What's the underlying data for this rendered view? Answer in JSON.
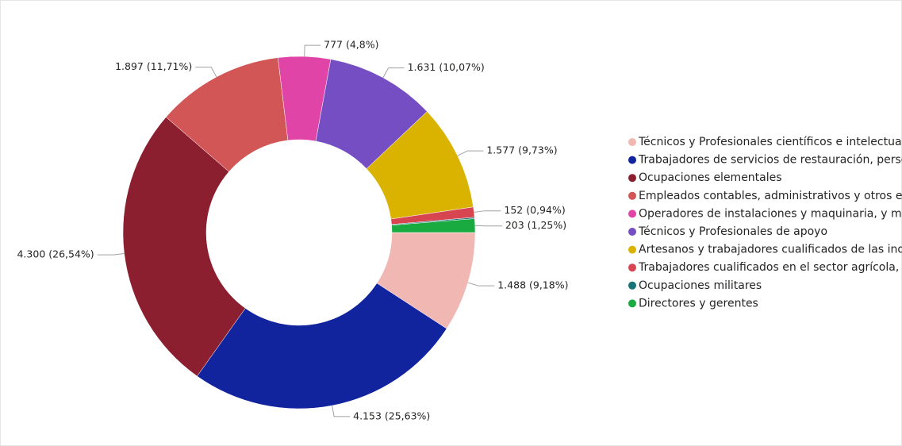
{
  "chart_data": {
    "type": "donut",
    "categories": [
      "Técnicos y Profesionales científicos e intelectuales",
      "Trabajadores de servicios de restauración, person...",
      "Ocupaciones elementales",
      "Empleados contables, administrativos y otros em...",
      "Operadores de instalaciones y maquinaria, y mo...",
      "Técnicos y Profesionales de apoyo",
      "Artesanos y trabajadores cualificados de las indu...",
      "Trabajadores cualificados en el sector agrícola, g...",
      "Ocupaciones militares",
      "Directores y gerentes"
    ],
    "values": [
      1488,
      4153,
      4300,
      1897,
      777,
      1631,
      1577,
      152,
      20,
      203
    ],
    "value_labels": [
      "1.488 (9,18%)",
      "4.153 (25,63%)",
      "4.300 (26,54%)",
      "1.897 (11,71%)",
      "777 (4,8%)",
      "1.631 (10,07%)",
      "1.577 (9,73%)",
      "152 (0,94%)",
      null,
      "203 (1,25%)"
    ],
    "colors": [
      "#f1b7b2",
      "#12239e",
      "#8b1e2f",
      "#d35657",
      "#e044a7",
      "#744ec2",
      "#d9b300",
      "#d64550",
      "#197278",
      "#1aab40"
    ],
    "legend": "right"
  }
}
